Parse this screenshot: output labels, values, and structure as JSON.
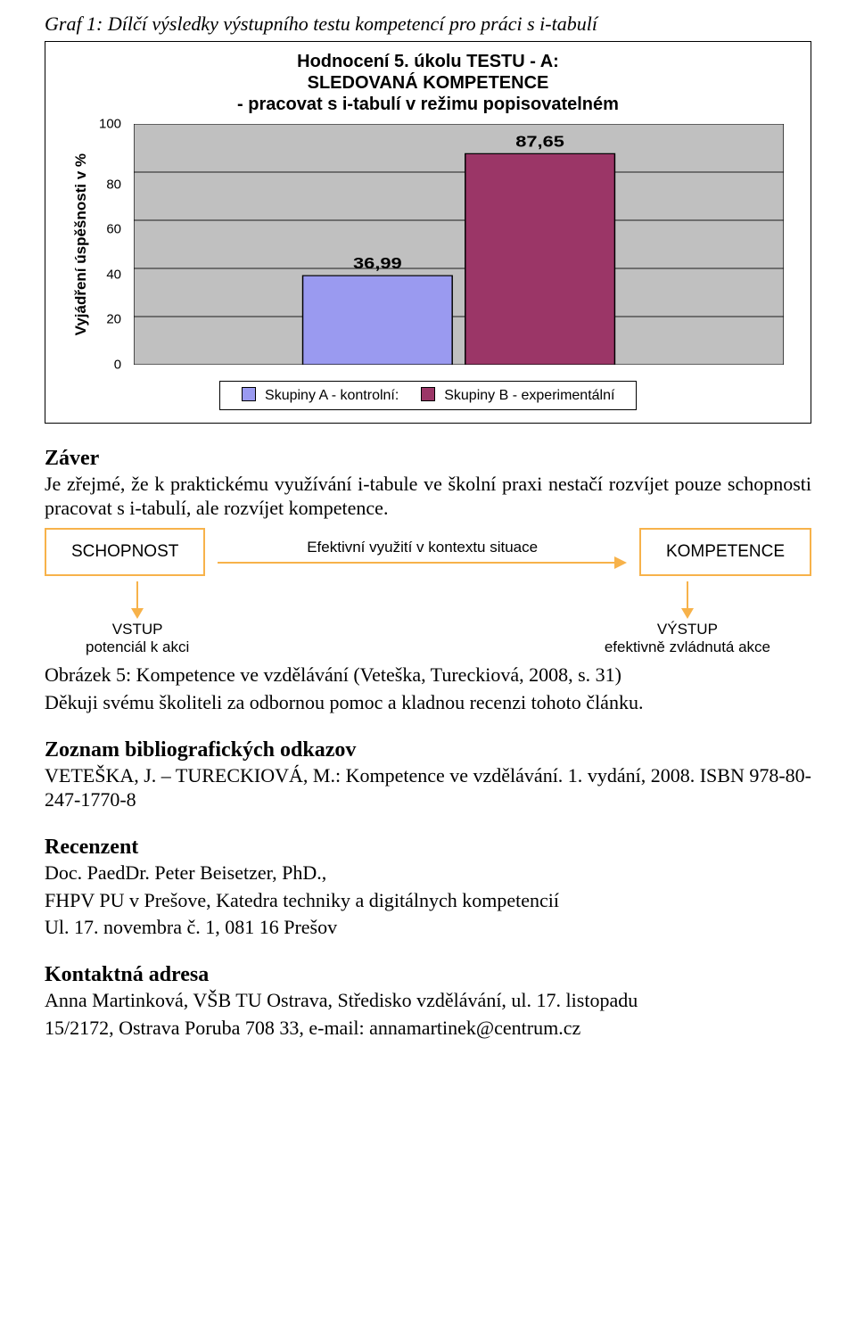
{
  "graf_title": "Graf 1: Dílčí výsledky výstupního testu kompetencí pro práci s i-tabulí",
  "chart": {
    "type": "bar",
    "title_line1": "Hodnocení 5. úkolu TESTU - A:",
    "title_line2": "SLEDOVANÁ KOMPETENCE",
    "title_line3": "- pracovat s i-tabulí v režimu popisovatelném",
    "y_axis_label": "Vyjádření úspěšnosti v %",
    "ylim": [
      0,
      100
    ],
    "ytick_step": 20,
    "yticks": [
      "100",
      "80",
      "60",
      "40",
      "20",
      "0"
    ],
    "plot_bg": "#c0c0c0",
    "grid_color": "#000000",
    "bars": [
      {
        "label": "36,99",
        "value": 36.99,
        "fill": "#9a9af0",
        "stroke": "#000000"
      },
      {
        "label": "87,65",
        "value": 87.65,
        "fill": "#9b3667",
        "stroke": "#000000"
      }
    ],
    "legend": [
      {
        "swatch": "#9a9af0",
        "text": "Skupiny A - kontrolní:"
      },
      {
        "swatch": "#9b3667",
        "text": "Skupiny B - experimentální"
      }
    ],
    "value_label_fontsize": 18,
    "value_label_font": "Arial"
  },
  "zaver_heading": "Záver",
  "zaver_text": "Je zřejmé, že k praktickému využívání i-tabule ve školní praxi nestačí rozvíjet pouze schopnosti pracovat s i-tabulí, ale rozvíjet kompetence.",
  "flow": {
    "border_color": "#f7b24a",
    "node_left": "SCHOPNOST",
    "mid_label": "Efektivní využití v kontextu situace",
    "node_right": "KOMPETENCE",
    "left_sub_title": "VSTUP",
    "left_sub_text": "potenciál k akci",
    "right_sub_title": "VÝSTUP",
    "right_sub_text": "efektivně zvládnutá akce"
  },
  "obrazek_caption": "Obrázek 5: Kompetence ve vzdělávání (Veteška, Tureckiová, 2008, s. 31)",
  "dekuji_text": "Děkuji svému školiteli za odbornou pomoc a kladnou recenzi tohoto článku.",
  "zoznam_heading": "Zoznam bibliografických odkazov",
  "zoznam_text": "VETEŠKA, J. – TURECKIOVÁ, M.: Kompetence ve vzdělávání. 1. vydání, 2008. ISBN 978-80-247-1770-8",
  "recenzent_heading": "Recenzent",
  "recenzent_line1": "Doc. PaedDr. Peter Beisetzer, PhD.,",
  "recenzent_line2": "FHPV PU v Prešove, Katedra techniky a digitálnych kompetencií",
  "recenzent_line3": "Ul. 17. novembra č. 1, 081 16 Prešov",
  "kontakt_heading": "Kontaktná adresa",
  "kontakt_line1": "Anna Martinková, VŠB TU Ostrava, Středisko vzdělávání, ul. 17. listopadu",
  "kontakt_line2": "15/2172, Ostrava Poruba 708 33, e-mail: annamartinek@centrum.cz"
}
